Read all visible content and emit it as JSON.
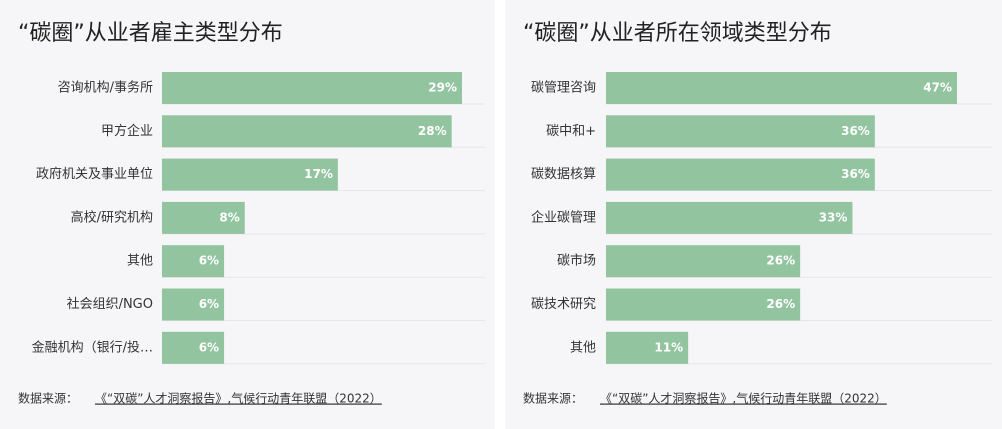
{
  "chart_data": [
    {
      "type": "bar",
      "orientation": "horizontal",
      "title": "“碳圈”从业者雇主类型分布",
      "categories": [
        "咨询机构/事务所",
        "甲方企业",
        "政府机关及事业单位",
        "高校/研究机构",
        "其他",
        "社会组织/NGO",
        "金融机构（银行/投…"
      ],
      "values": [
        29,
        28,
        17,
        8,
        6,
        6,
        6
      ],
      "value_labels": [
        "29%",
        "28%",
        "17%",
        "8%",
        "6%",
        "6%",
        "6%"
      ],
      "color": "#93c4a0",
      "source_label": "数据来源：",
      "source": "《“双碳”人才洞察报告》,气候行动青年联盟（2022）"
    },
    {
      "type": "bar",
      "orientation": "horizontal",
      "title": "“碳圈”从业者所在领域类型分布",
      "categories": [
        "碳管理咨询",
        "碳中和+",
        "碳数据核算",
        "企业碳管理",
        "碳市场",
        "碳技术研究",
        "其他"
      ],
      "values": [
        47,
        36,
        36,
        33,
        26,
        26,
        11
      ],
      "value_labels": [
        "47%",
        "36%",
        "36%",
        "33%",
        "26%",
        "26%",
        "11%"
      ],
      "color": "#93c4a0",
      "source_label": "数据来源：",
      "source": "《“双碳”人才洞察报告》,气候行动青年联盟（2022）"
    }
  ]
}
